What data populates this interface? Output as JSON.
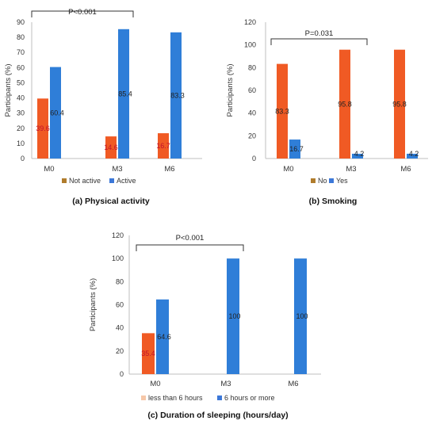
{
  "chart_data": [
    {
      "type": "bar",
      "caption": "(a) Physical activity",
      "categories": [
        "M0",
        "M3",
        "M6"
      ],
      "ylabel": "Participants (%)",
      "ylim": [
        0,
        90
      ],
      "yticks": [
        0,
        10,
        20,
        30,
        40,
        50,
        60,
        70,
        80,
        90
      ],
      "grid": false,
      "legend_position": "bottom",
      "significance": {
        "text": "P<0.001",
        "from": "M0",
        "to": "M3"
      },
      "series": [
        {
          "name": "Not active",
          "color": "#f05a24",
          "legend_color": "#b07c2c",
          "values": [
            39.6,
            14.6,
            16.7
          ],
          "labels": [
            "39.6",
            "14.6",
            "16.7"
          ],
          "label_color": "#c0102c"
        },
        {
          "name": "Active",
          "color": "#2f7ed8",
          "legend_color": "#3c78d8",
          "values": [
            60.4,
            85.4,
            83.3
          ],
          "labels": [
            "60.4",
            "85.4",
            "83.3"
          ],
          "label_color": "#222222"
        }
      ]
    },
    {
      "type": "bar",
      "caption": "(b) Smoking",
      "categories": [
        "M0",
        "M3",
        "M6"
      ],
      "ylabel": "Participants (%)",
      "ylim": [
        0,
        120
      ],
      "yticks": [
        0,
        20,
        40,
        60,
        80,
        100,
        120
      ],
      "grid": false,
      "legend_position": "bottom",
      "significance": {
        "text": "P=0.031",
        "from": "M0",
        "to": "M3"
      },
      "series": [
        {
          "name": "No",
          "color": "#f05a24",
          "legend_color": "#b07c2c",
          "values": [
            83.3,
            95.8,
            95.8
          ],
          "labels": [
            "83.3",
            "95.8",
            "95.8"
          ],
          "label_color": "#222222"
        },
        {
          "name": "Yes",
          "color": "#2f7ed8",
          "legend_color": "#3c78d8",
          "values": [
            16.7,
            4.2,
            4.2
          ],
          "labels": [
            "16.7",
            "4.2",
            "4.2"
          ],
          "label_color": "#222222"
        }
      ]
    },
    {
      "type": "bar",
      "caption": "(c) Duration of sleeping (hours/day)",
      "categories": [
        "M0",
        "M3",
        "M6"
      ],
      "ylabel": "Participants (%)",
      "ylim": [
        0,
        120
      ],
      "yticks": [
        0,
        20,
        40,
        60,
        80,
        100,
        120
      ],
      "grid": false,
      "legend_position": "bottom",
      "significance": {
        "text": "P<0.001",
        "from": "M0",
        "to": "M3"
      },
      "series": [
        {
          "name": "less than 6 hours",
          "color": "#f05a24",
          "legend_color": "#f6c7a8",
          "values": [
            35.4,
            0,
            0
          ],
          "labels": [
            "35.4",
            "",
            ""
          ],
          "label_color": "#c0102c"
        },
        {
          "name": "6 hours or more",
          "color": "#2f7ed8",
          "legend_color": "#3c78d8",
          "values": [
            64.6,
            100,
            100
          ],
          "labels": [
            "64.6",
            "100",
            "100"
          ],
          "label_color": "#222222"
        }
      ]
    }
  ]
}
